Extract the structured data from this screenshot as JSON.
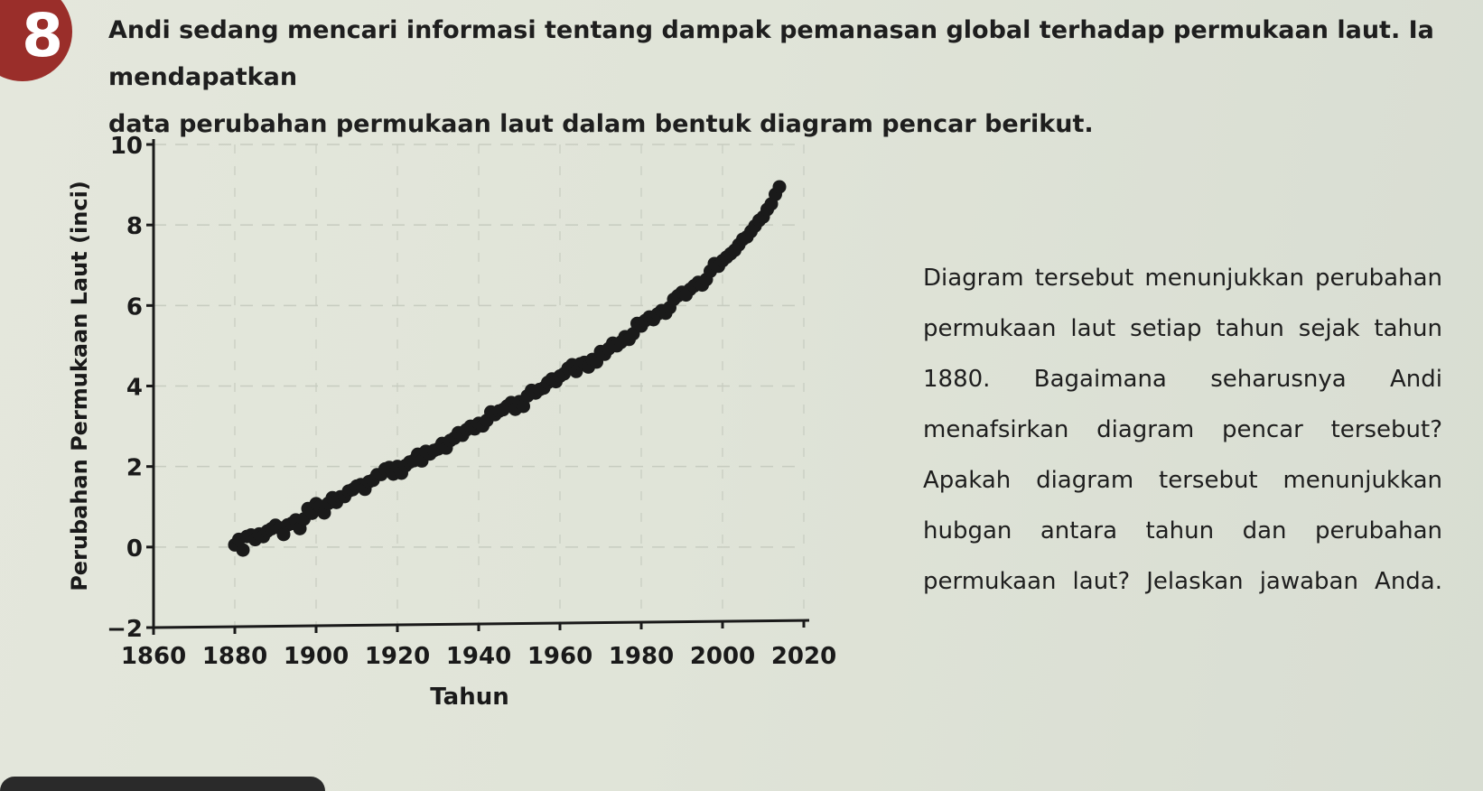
{
  "problem": {
    "number": "8",
    "intro_line1": "Andi sedang mencari informasi tentang dampak pemanasan global terhadap permukaan laut. Ia mendapatkan",
    "intro_line2": "data perubahan permukaan laut dalam bentuk diagram pencar berikut."
  },
  "question": {
    "text": "Diagram tersebut menunjukkan perubahan permukaan laut setiap tahun sejak tahun 1880. Bagaimana seharusnya Andi menafsirkan diagram pencar tersebut? Apakah diagram tersebut menunjukkan hubgan antara tahun dan perubahan permukaan laut? Jelaskan jawaban Anda."
  },
  "colors": {
    "marker": "#1a1a1a",
    "axis": "#1a1a1a",
    "badge": "#9a2e2a",
    "grid": "#c7ccc0"
  },
  "chart_data": {
    "type": "scatter",
    "title": "",
    "xlabel": "Tahun",
    "ylabel": "Perubahan Permukaan Laut (inci)",
    "xlim": [
      1860,
      2020
    ],
    "ylim": [
      -2,
      10
    ],
    "xticks": [
      1860,
      1880,
      1900,
      1920,
      1940,
      1960,
      1980,
      2000,
      2020
    ],
    "xtick_labels": [
      "1860",
      "1880",
      "1900",
      "1920",
      "1940",
      "1960",
      "1980",
      "2000",
      "2020"
    ],
    "yticks": [
      -2,
      0,
      2,
      4,
      6,
      8,
      10
    ],
    "ytick_labels": [
      "−2",
      "0",
      "2",
      "4",
      "6",
      "8",
      "10"
    ],
    "grid": true,
    "legend": "none",
    "x": [
      1880,
      1881,
      1882,
      1883,
      1884,
      1885,
      1886,
      1887,
      1888,
      1889,
      1890,
      1891,
      1892,
      1893,
      1894,
      1895,
      1896,
      1897,
      1898,
      1899,
      1900,
      1901,
      1902,
      1903,
      1904,
      1905,
      1906,
      1907,
      1908,
      1909,
      1910,
      1911,
      1912,
      1913,
      1914,
      1915,
      1916,
      1917,
      1918,
      1919,
      1920,
      1921,
      1922,
      1923,
      1924,
      1925,
      1926,
      1927,
      1928,
      1929,
      1930,
      1931,
      1932,
      1933,
      1934,
      1935,
      1936,
      1937,
      1938,
      1939,
      1940,
      1941,
      1942,
      1943,
      1944,
      1945,
      1946,
      1947,
      1948,
      1949,
      1950,
      1951,
      1952,
      1953,
      1954,
      1955,
      1956,
      1957,
      1958,
      1959,
      1960,
      1961,
      1962,
      1963,
      1964,
      1965,
      1966,
      1967,
      1968,
      1969,
      1970,
      1971,
      1972,
      1973,
      1974,
      1975,
      1976,
      1977,
      1978,
      1979,
      1980,
      1981,
      1982,
      1983,
      1984,
      1985,
      1986,
      1987,
      1988,
      1989,
      1990,
      1991,
      1992,
      1993,
      1994,
      1995,
      1996,
      1997,
      1998,
      1999,
      2000,
      2001,
      2002,
      2003,
      2004,
      2005,
      2006,
      2007,
      2008,
      2009,
      2010,
      2011,
      2012,
      2013,
      2014
    ],
    "y": [
      0.0,
      0.15,
      -0.1,
      0.25,
      0.3,
      0.2,
      0.35,
      0.3,
      0.45,
      0.4,
      0.5,
      0.45,
      0.3,
      0.55,
      0.6,
      0.7,
      0.5,
      0.75,
      0.9,
      0.8,
      1.05,
      1.0,
      0.85,
      1.1,
      1.25,
      1.15,
      1.3,
      1.2,
      1.35,
      1.4,
      1.5,
      1.55,
      1.45,
      1.65,
      1.7,
      1.85,
      1.75,
      1.9,
      1.95,
      1.8,
      2.0,
      1.85,
      2.05,
      2.15,
      2.2,
      2.25,
      2.1,
      2.35,
      2.3,
      2.4,
      2.45,
      2.6,
      2.5,
      2.7,
      2.65,
      2.8,
      2.75,
      2.9,
      3.0,
      2.95,
      3.1,
      3.05,
      3.2,
      3.3,
      3.25,
      3.35,
      3.4,
      3.5,
      3.6,
      3.45,
      3.65,
      3.55,
      3.7,
      3.85,
      3.8,
      3.9,
      3.95,
      4.1,
      4.2,
      4.15,
      4.3,
      4.25,
      4.4,
      4.5,
      4.35,
      4.55,
      4.6,
      4.5,
      4.7,
      4.65,
      4.8,
      4.75,
      4.9,
      5.05,
      5.0,
      5.1,
      5.25,
      5.2,
      5.35,
      5.5,
      5.45,
      5.6,
      5.7,
      5.65,
      5.8,
      5.9,
      5.85,
      6.0,
      6.1,
      6.2,
      6.3,
      6.25,
      6.4,
      6.5,
      6.6,
      6.55,
      6.7,
      6.8,
      7.0,
      6.95,
      7.1,
      7.2,
      7.3,
      7.4,
      7.55,
      7.7,
      7.65,
      7.8,
      7.95,
      8.1,
      8.2,
      8.4,
      8.55,
      8.8,
      9.0
    ]
  }
}
